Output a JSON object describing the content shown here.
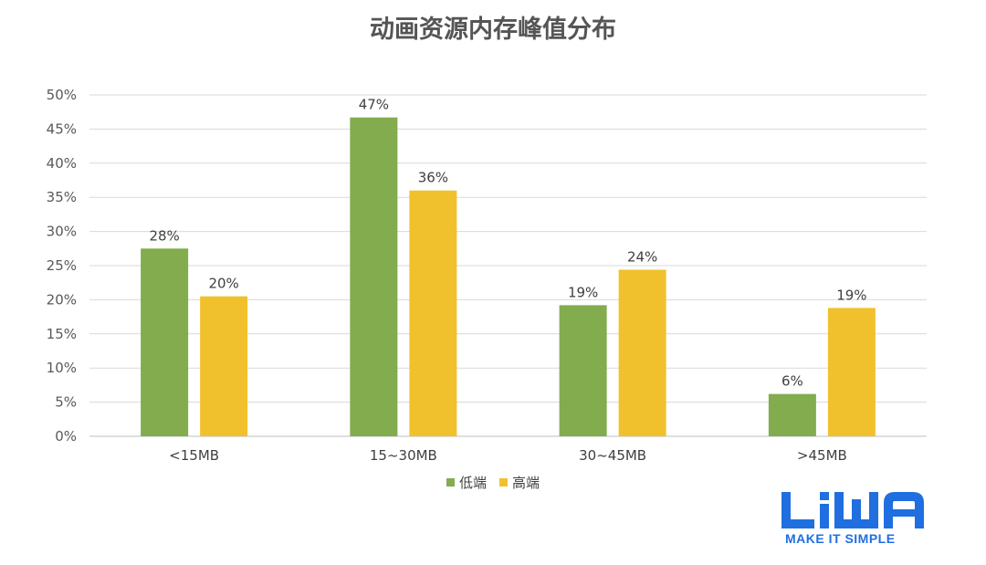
{
  "chart_data": {
    "type": "bar",
    "title": "动画资源内存峰值分布",
    "categories": [
      "<15MB",
      "15~30MB",
      "30~45MB",
      ">45MB"
    ],
    "series": [
      {
        "name": "低端",
        "color": "#82ac4e",
        "values": [
          27.5,
          46.7,
          19.2,
          6.2
        ],
        "labels": [
          "28%",
          "47%",
          "19%",
          "6%"
        ]
      },
      {
        "name": "高端",
        "color": "#f0c12c",
        "values": [
          20.5,
          36.0,
          24.4,
          18.8
        ],
        "labels": [
          "20%",
          "36%",
          "24%",
          "19%"
        ]
      }
    ],
    "yticks": [
      "0%",
      "5%",
      "10%",
      "15%",
      "20%",
      "25%",
      "30%",
      "35%",
      "40%",
      "45%",
      "50%"
    ],
    "ylim": [
      0,
      50
    ],
    "grid": true,
    "legend_position": "bottom"
  },
  "logo": {
    "wordmark": "LiWA",
    "tagline": "MAKE IT SIMPLE",
    "color": "#1f6fe0"
  }
}
